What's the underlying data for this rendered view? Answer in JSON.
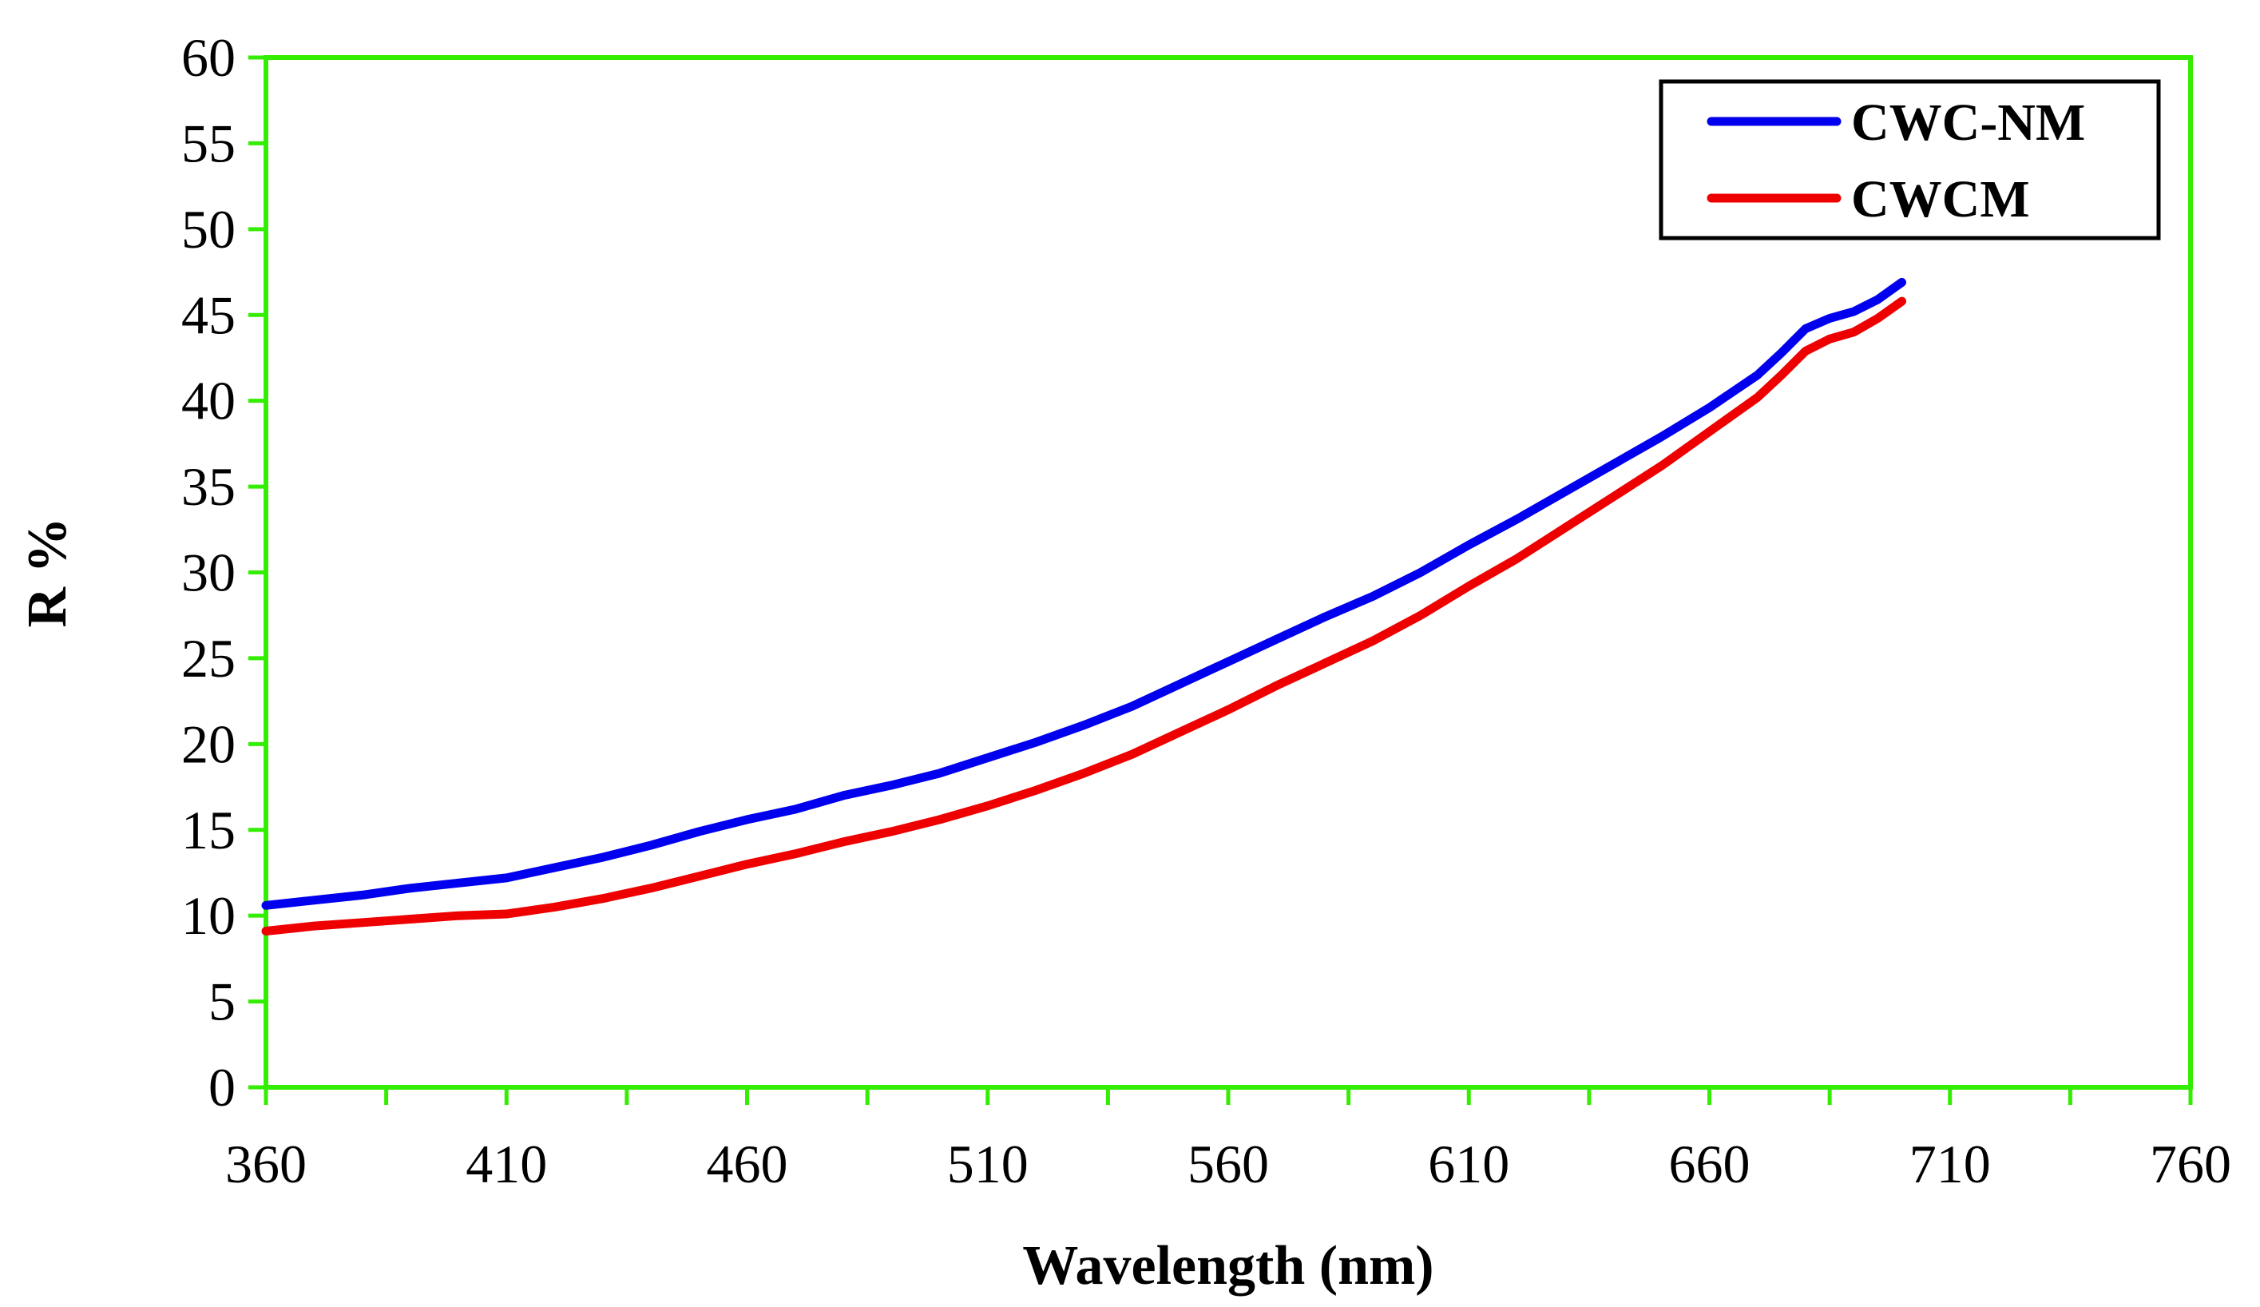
{
  "chart_data": {
    "type": "line",
    "title": "",
    "xlabel": "Wavelength (nm)",
    "ylabel": "R %",
    "xlim": [
      360,
      760
    ],
    "ylim": [
      0,
      60
    ],
    "x_ticks": [
      360,
      410,
      460,
      510,
      560,
      610,
      660,
      710,
      760
    ],
    "y_ticks": [
      0,
      5,
      10,
      15,
      20,
      25,
      30,
      35,
      40,
      45,
      50,
      55,
      60
    ],
    "grid": false,
    "legend_position": "top-right",
    "frame_color": "#33ee00",
    "series": [
      {
        "name": "CWC-NM",
        "color": "#0000ee",
        "x": [
          360,
          370,
          380,
          390,
          400,
          410,
          420,
          430,
          440,
          450,
          460,
          470,
          480,
          490,
          500,
          510,
          520,
          530,
          540,
          550,
          560,
          570,
          580,
          590,
          600,
          610,
          620,
          630,
          640,
          650,
          660,
          670,
          675,
          680,
          685,
          690,
          695,
          700
        ],
        "values": [
          10.6,
          10.9,
          11.2,
          11.6,
          11.9,
          12.2,
          12.8,
          13.4,
          14.1,
          14.9,
          15.6,
          16.2,
          17.0,
          17.6,
          18.3,
          19.2,
          20.1,
          21.1,
          22.2,
          23.5,
          24.8,
          26.1,
          27.4,
          28.6,
          30.0,
          31.6,
          33.1,
          34.7,
          36.3,
          37.9,
          39.6,
          41.5,
          42.8,
          44.2,
          44.8,
          45.2,
          45.9,
          46.9
        ]
      },
      {
        "name": "CWCM",
        "color": "#ee0000",
        "x": [
          360,
          370,
          380,
          390,
          400,
          410,
          420,
          430,
          440,
          450,
          460,
          470,
          480,
          490,
          500,
          510,
          520,
          530,
          540,
          550,
          560,
          570,
          580,
          590,
          600,
          610,
          620,
          630,
          640,
          650,
          660,
          670,
          675,
          680,
          685,
          690,
          695,
          700
        ],
        "values": [
          9.1,
          9.4,
          9.6,
          9.8,
          10.0,
          10.1,
          10.5,
          11.0,
          11.6,
          12.3,
          13.0,
          13.6,
          14.3,
          14.9,
          15.6,
          16.4,
          17.3,
          18.3,
          19.4,
          20.7,
          22.0,
          23.4,
          24.7,
          26.0,
          27.5,
          29.2,
          30.8,
          32.6,
          34.4,
          36.2,
          38.2,
          40.2,
          41.5,
          42.9,
          43.6,
          44.0,
          44.8,
          45.8
        ]
      }
    ]
  }
}
